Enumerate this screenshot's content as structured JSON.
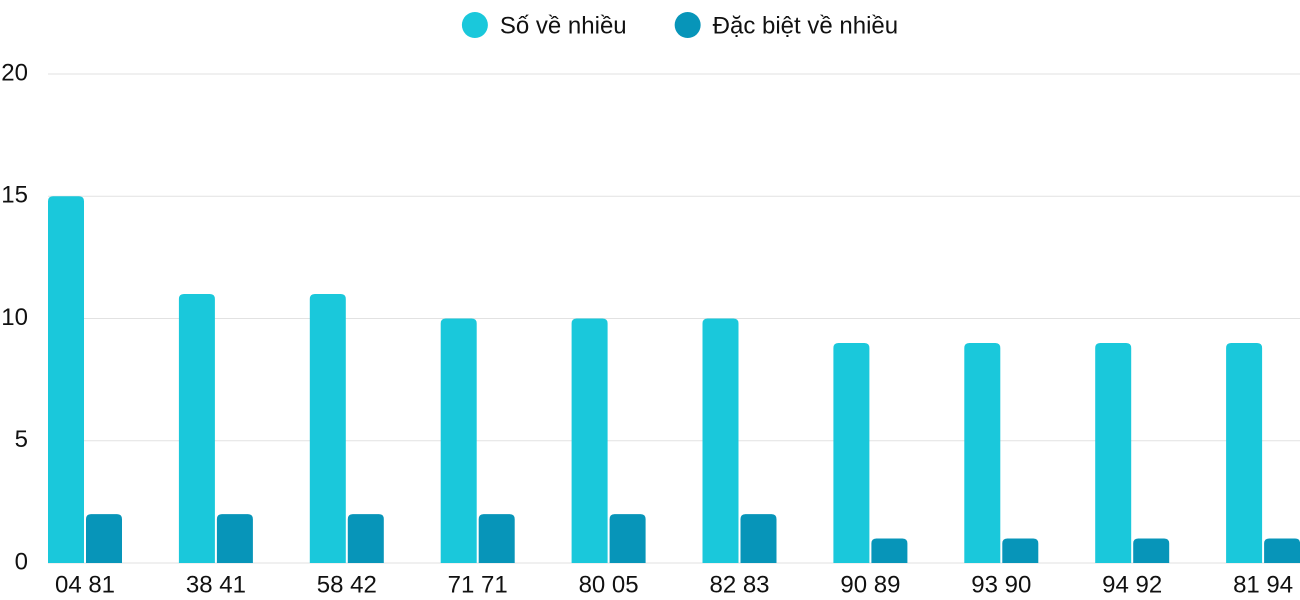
{
  "chart_data": {
    "type": "bar",
    "categories": [
      "04 81",
      "38 41",
      "58 42",
      "71 71",
      "80 05",
      "82 83",
      "90 89",
      "93 90",
      "94 92",
      "81 94"
    ],
    "series": [
      {
        "name": "Số về nhiều",
        "color": "#1ac8db",
        "values": [
          15,
          11,
          11,
          10,
          10,
          10,
          9,
          9,
          9,
          9
        ]
      },
      {
        "name": "Đặc biệt về nhiều",
        "color": "#0795b9",
        "values": [
          2,
          2,
          2,
          2,
          2,
          2,
          1,
          1,
          1,
          1
        ]
      }
    ],
    "ylim": [
      0,
      20
    ],
    "yticks": [
      0,
      5,
      10,
      15,
      20
    ],
    "grid": true,
    "legend": "top"
  }
}
